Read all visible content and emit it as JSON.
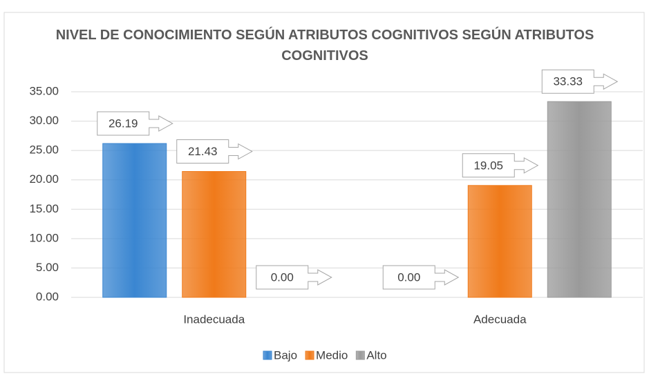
{
  "chart_data": {
    "type": "bar",
    "title": "NIVEL DE CONOCIMIENTO SEGÚN ATRIBUTOS COGNITIVOS SEGÚN ATRIBUTOS COGNITIVOS",
    "categories": [
      "Inadecuada",
      "Adecuada"
    ],
    "series": [
      {
        "name": "Bajo",
        "color": "#3a86d1",
        "values": [
          26.19,
          0
        ],
        "value_labels": [
          "26.19",
          "0.00"
        ]
      },
      {
        "name": "Medio",
        "color": "#f07a1a",
        "values": [
          21.43,
          19.05
        ],
        "value_labels": [
          "21.43",
          "19.05"
        ]
      },
      {
        "name": "Alto",
        "color": "#9a9a9a",
        "values": [
          0,
          33.33
        ],
        "value_labels": [
          "0.00",
          "33.33"
        ]
      }
    ],
    "ylim": [
      0,
      35
    ],
    "yticks": [
      {
        "value": 0,
        "label": "0.00"
      },
      {
        "value": 5,
        "label": "5.00"
      },
      {
        "value": 10,
        "label": "10.00"
      },
      {
        "value": 15,
        "label": "15.00"
      },
      {
        "value": 20,
        "label": "20.00"
      },
      {
        "value": 25,
        "label": "25.00"
      },
      {
        "value": 30,
        "label": "30.00"
      },
      {
        "value": 35,
        "label": "35.00"
      }
    ],
    "grid": true,
    "legend": "bottom"
  }
}
